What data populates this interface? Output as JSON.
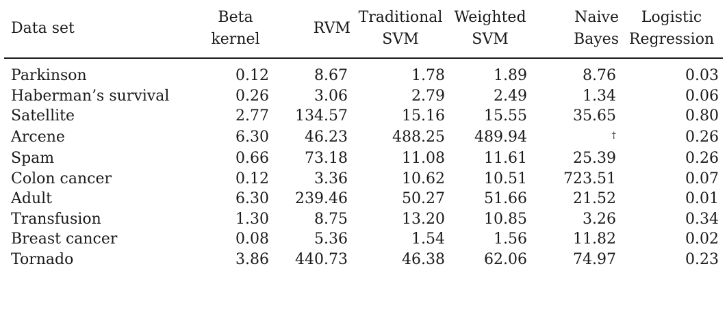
{
  "table": {
    "headers": [
      {
        "lines": [
          "Data set"
        ]
      },
      {
        "lines": [
          "Beta",
          "kernel"
        ]
      },
      {
        "lines": [
          "RVM"
        ]
      },
      {
        "lines": [
          "Traditional",
          "SVM"
        ]
      },
      {
        "lines": [
          "Weighted",
          "SVM"
        ]
      },
      {
        "lines": [
          "Naive",
          "Bayes"
        ]
      },
      {
        "lines": [
          "Logistic",
          "Regression"
        ]
      }
    ],
    "rows": [
      [
        "Parkinson",
        "0.12",
        "8.67",
        "1.78",
        "1.89",
        "8.76",
        "0.03"
      ],
      [
        "Haberman’s survival",
        "0.26",
        "3.06",
        "2.79",
        "2.49",
        "1.34",
        "0.06"
      ],
      [
        "Satellite",
        "2.77",
        "134.57",
        "15.16",
        "15.55",
        "35.65",
        "0.80"
      ],
      [
        "Arcene",
        "6.30",
        "46.23",
        "488.25",
        "489.94",
        "†",
        "0.26"
      ],
      [
        "Spam",
        "0.66",
        "73.18",
        "11.08",
        "11.61",
        "25.39",
        "0.26"
      ],
      [
        "Colon cancer",
        "0.12",
        "3.36",
        "10.62",
        "10.51",
        "723.51",
        "0.07"
      ],
      [
        "Adult",
        "6.30",
        "239.46",
        "50.27",
        "51.66",
        "21.52",
        "0.01"
      ],
      [
        "Transfusion",
        "1.30",
        "8.75",
        "13.20",
        "10.85",
        "3.26",
        "0.34"
      ],
      [
        "Breast cancer",
        "0.08",
        "5.36",
        "1.54",
        "1.56",
        "11.82",
        "0.02"
      ],
      [
        "Tornado",
        "3.86",
        "440.73",
        "46.38",
        "62.06",
        "74.97",
        "0.23"
      ]
    ]
  }
}
